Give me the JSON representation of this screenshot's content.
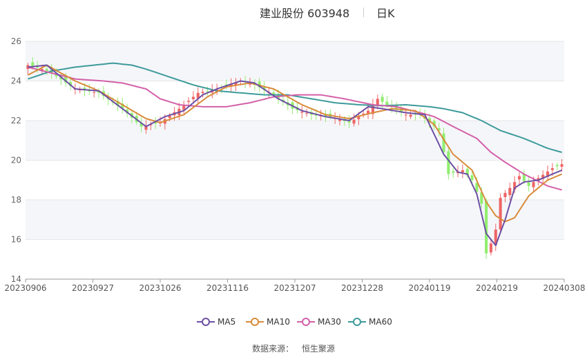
{
  "header": {
    "title": "建业股份 603948",
    "tab": "日K"
  },
  "source": {
    "label": "数据来源：",
    "value": "恒生聚源"
  },
  "colors": {
    "up": "#ee6666",
    "down": "#91ee6f",
    "ma5": "#6c4fa3",
    "ma10": "#d98b3a",
    "ma30": "#d35fa8",
    "ma60": "#3c9a9a",
    "grid": "#e6e6e6",
    "band": "#f5f6fa"
  },
  "chart_data": {
    "type": "candlestick",
    "y_axis": {
      "min": 14,
      "max": 26,
      "ticks": [
        14,
        16,
        18,
        20,
        22,
        24,
        26
      ]
    },
    "x_axis": {
      "tick_labels": [
        "20230906",
        "20230927",
        "20231026",
        "20231116",
        "20231207",
        "20231228",
        "20240119",
        "20240219",
        "20240308"
      ]
    },
    "legend": [
      "MA5",
      "MA10",
      "MA30",
      "MA60"
    ],
    "grid": true,
    "series_anchors": {
      "close": [
        [
          0,
          24.8
        ],
        [
          2,
          24.7
        ],
        [
          5,
          24.4
        ],
        [
          10,
          23.6
        ],
        [
          15,
          23.4
        ],
        [
          20,
          22.6
        ],
        [
          24,
          21.7
        ],
        [
          28,
          21.9
        ],
        [
          32,
          22.6
        ],
        [
          36,
          23.4
        ],
        [
          40,
          23.6
        ],
        [
          45,
          24.0
        ],
        [
          48,
          23.8
        ],
        [
          52,
          23.3
        ],
        [
          56,
          22.6
        ],
        [
          60,
          22.3
        ],
        [
          64,
          22.2
        ],
        [
          68,
          21.9
        ],
        [
          72,
          22.5
        ],
        [
          74,
          23.1
        ],
        [
          76,
          22.8
        ],
        [
          80,
          22.3
        ],
        [
          83,
          22.3
        ],
        [
          87,
          21.5
        ],
        [
          89,
          19.3
        ],
        [
          92,
          19.5
        ],
        [
          94,
          19.0
        ],
        [
          96,
          17.8
        ],
        [
          97,
          15.3
        ],
        [
          98,
          15.8
        ],
        [
          99,
          16.5
        ],
        [
          100,
          18.1
        ],
        [
          102,
          18.6
        ],
        [
          104,
          19.2
        ],
        [
          106,
          18.7
        ],
        [
          108,
          19.1
        ],
        [
          111,
          19.6
        ],
        [
          113,
          19.8
        ]
      ],
      "ma5": [
        [
          0,
          24.7
        ],
        [
          4,
          24.8
        ],
        [
          10,
          23.6
        ],
        [
          15,
          23.5
        ],
        [
          20,
          22.6
        ],
        [
          25,
          21.7
        ],
        [
          29,
          22.2
        ],
        [
          33,
          22.5
        ],
        [
          37,
          23.3
        ],
        [
          40,
          23.6
        ],
        [
          45,
          24.0
        ],
        [
          48,
          23.9
        ],
        [
          53,
          23.1
        ],
        [
          58,
          22.5
        ],
        [
          63,
          22.2
        ],
        [
          68,
          22.0
        ],
        [
          72,
          22.7
        ],
        [
          75,
          22.6
        ],
        [
          80,
          22.4
        ],
        [
          84,
          22.3
        ],
        [
          88,
          20.3
        ],
        [
          91,
          19.4
        ],
        [
          93,
          19.3
        ],
        [
          95,
          18.3
        ],
        [
          97,
          16.3
        ],
        [
          99,
          15.7
        ],
        [
          101,
          17.0
        ],
        [
          103,
          18.6
        ],
        [
          105,
          18.9
        ],
        [
          108,
          19.0
        ],
        [
          113,
          19.5
        ]
      ],
      "ma10": [
        [
          0,
          24.3
        ],
        [
          4,
          24.8
        ],
        [
          10,
          24.0
        ],
        [
          15,
          23.5
        ],
        [
          20,
          22.8
        ],
        [
          25,
          22.1
        ],
        [
          28,
          21.9
        ],
        [
          33,
          22.3
        ],
        [
          38,
          23.2
        ],
        [
          42,
          23.7
        ],
        [
          47,
          23.9
        ],
        [
          52,
          23.6
        ],
        [
          58,
          22.8
        ],
        [
          63,
          22.3
        ],
        [
          68,
          22.1
        ],
        [
          73,
          22.4
        ],
        [
          77,
          22.6
        ],
        [
          82,
          22.5
        ],
        [
          86,
          21.8
        ],
        [
          90,
          20.3
        ],
        [
          94,
          19.5
        ],
        [
          97,
          17.9
        ],
        [
          99,
          17.2
        ],
        [
          101,
          16.9
        ],
        [
          103,
          17.1
        ],
        [
          106,
          18.2
        ],
        [
          110,
          19.0
        ],
        [
          113,
          19.3
        ]
      ],
      "ma30": [
        [
          0,
          24.7
        ],
        [
          5,
          24.4
        ],
        [
          10,
          24.1
        ],
        [
          16,
          24.0
        ],
        [
          20,
          23.9
        ],
        [
          25,
          23.6
        ],
        [
          28,
          23.1
        ],
        [
          32,
          22.8
        ],
        [
          37,
          22.7
        ],
        [
          42,
          22.7
        ],
        [
          47,
          22.9
        ],
        [
          52,
          23.2
        ],
        [
          57,
          23.3
        ],
        [
          62,
          23.3
        ],
        [
          67,
          23.1
        ],
        [
          73,
          22.8
        ],
        [
          78,
          22.7
        ],
        [
          83,
          22.4
        ],
        [
          86,
          22.2
        ],
        [
          90,
          21.7
        ],
        [
          95,
          21.1
        ],
        [
          98,
          20.4
        ],
        [
          101,
          19.9
        ],
        [
          105,
          19.3
        ],
        [
          110,
          18.7
        ],
        [
          113,
          18.5
        ]
      ],
      "ma60": [
        [
          0,
          24.1
        ],
        [
          5,
          24.5
        ],
        [
          10,
          24.7
        ],
        [
          18,
          24.9
        ],
        [
          22,
          24.8
        ],
        [
          25,
          24.6
        ],
        [
          30,
          24.2
        ],
        [
          35,
          23.8
        ],
        [
          40,
          23.5
        ],
        [
          45,
          23.4
        ],
        [
          50,
          23.3
        ],
        [
          55,
          23.3
        ],
        [
          60,
          23.1
        ],
        [
          65,
          22.9
        ],
        [
          70,
          22.8
        ],
        [
          75,
          22.75
        ],
        [
          80,
          22.8
        ],
        [
          85,
          22.7
        ],
        [
          88,
          22.6
        ],
        [
          92,
          22.4
        ],
        [
          96,
          22.0
        ],
        [
          100,
          21.5
        ],
        [
          105,
          21.1
        ],
        [
          110,
          20.6
        ],
        [
          113,
          20.4
        ]
      ]
    }
  }
}
